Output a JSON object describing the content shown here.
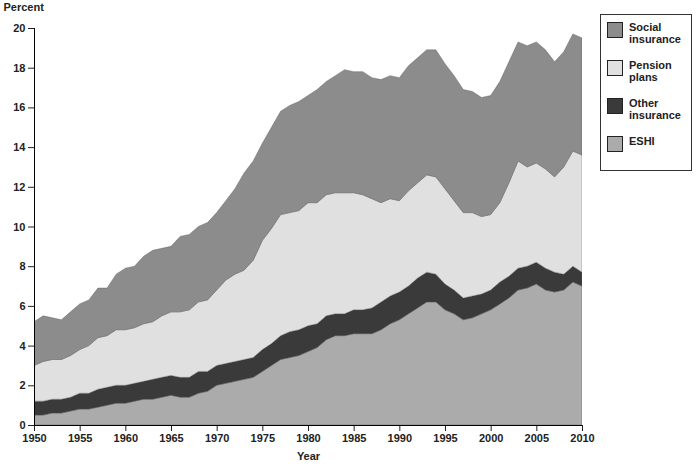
{
  "chart_data": {
    "type": "area",
    "stacked": true,
    "x_label": "Year",
    "y_label": "Percent",
    "legend": "right",
    "grid": false,
    "x": [
      1950,
      1951,
      1952,
      1953,
      1954,
      1955,
      1956,
      1957,
      1958,
      1959,
      1960,
      1961,
      1962,
      1963,
      1964,
      1965,
      1966,
      1967,
      1968,
      1969,
      1970,
      1971,
      1972,
      1973,
      1974,
      1975,
      1976,
      1977,
      1978,
      1979,
      1980,
      1981,
      1982,
      1983,
      1984,
      1985,
      1986,
      1987,
      1988,
      1989,
      1990,
      1991,
      1992,
      1993,
      1994,
      1995,
      1996,
      1997,
      1998,
      1999,
      2000,
      2001,
      2002,
      2003,
      2004,
      2005,
      2006,
      2007,
      2008,
      2009,
      2010
    ],
    "xlim": [
      1950,
      2010
    ],
    "xticks": [
      1950,
      1955,
      1960,
      1965,
      1970,
      1975,
      1980,
      1985,
      1990,
      1995,
      2000,
      2005,
      2010
    ],
    "ylim": [
      0,
      20
    ],
    "yticks": [
      0,
      2,
      4,
      6,
      8,
      10,
      12,
      14,
      16,
      18,
      20
    ],
    "series": [
      {
        "name": "Social insurance",
        "color": "#8c8c8c",
        "values": [
          2.2,
          2.3,
          2.1,
          2.0,
          2.2,
          2.3,
          2.3,
          2.5,
          2.4,
          2.8,
          3.1,
          3.1,
          3.4,
          3.6,
          3.4,
          3.3,
          3.8,
          3.8,
          3.8,
          3.9,
          3.9,
          4.0,
          4.3,
          4.9,
          5.0,
          4.9,
          5.1,
          5.2,
          5.4,
          5.5,
          5.4,
          5.7,
          5.7,
          5.9,
          6.2,
          6.1,
          6.2,
          6.1,
          6.2,
          6.2,
          6.2,
          6.3,
          6.3,
          6.3,
          6.4,
          6.3,
          6.3,
          6.2,
          6.1,
          6.0,
          6.0,
          6.1,
          6.1,
          6.0,
          6.1,
          6.1,
          6.0,
          5.8,
          5.8,
          5.9,
          5.9
        ]
      },
      {
        "name": "Pension plans",
        "color": "#e0e0e0",
        "values": [
          1.8,
          2.0,
          2.0,
          2.0,
          2.1,
          2.2,
          2.4,
          2.6,
          2.6,
          2.8,
          2.8,
          2.8,
          2.9,
          2.9,
          3.1,
          3.2,
          3.3,
          3.4,
          3.5,
          3.6,
          3.8,
          4.2,
          4.4,
          4.5,
          4.9,
          5.5,
          5.8,
          6.1,
          6.0,
          6.0,
          6.2,
          6.1,
          6.1,
          6.1,
          6.1,
          5.9,
          5.8,
          5.5,
          5.0,
          4.9,
          4.6,
          4.8,
          4.8,
          4.9,
          4.9,
          4.8,
          4.5,
          4.3,
          4.2,
          3.9,
          3.8,
          4.0,
          4.7,
          5.4,
          5.0,
          5.0,
          5.0,
          4.8,
          5.4,
          5.8,
          5.9
        ]
      },
      {
        "name": "Other insurance",
        "color": "#3a3a3a",
        "values": [
          0.7,
          0.7,
          0.7,
          0.7,
          0.7,
          0.8,
          0.8,
          0.9,
          0.9,
          0.9,
          0.9,
          0.9,
          0.9,
          1.0,
          1.0,
          1.0,
          1.0,
          1.0,
          1.1,
          1.0,
          1.0,
          1.0,
          1.0,
          1.0,
          1.0,
          1.1,
          1.1,
          1.2,
          1.3,
          1.3,
          1.3,
          1.2,
          1.2,
          1.1,
          1.1,
          1.2,
          1.2,
          1.3,
          1.4,
          1.4,
          1.4,
          1.4,
          1.5,
          1.5,
          1.4,
          1.3,
          1.2,
          1.1,
          1.1,
          1.0,
          1.0,
          1.1,
          1.1,
          1.1,
          1.1,
          1.1,
          1.1,
          1.0,
          0.8,
          0.8,
          0.7
        ]
      },
      {
        "name": "ESHI",
        "color": "#ababab",
        "values": [
          0.5,
          0.5,
          0.6,
          0.6,
          0.7,
          0.8,
          0.8,
          0.9,
          1.0,
          1.1,
          1.1,
          1.2,
          1.3,
          1.3,
          1.4,
          1.5,
          1.4,
          1.4,
          1.6,
          1.7,
          2.0,
          2.1,
          2.2,
          2.3,
          2.4,
          2.7,
          3.0,
          3.3,
          3.4,
          3.5,
          3.7,
          3.9,
          4.3,
          4.5,
          4.5,
          4.6,
          4.6,
          4.6,
          4.8,
          5.1,
          5.3,
          5.6,
          5.9,
          6.2,
          6.2,
          5.8,
          5.6,
          5.3,
          5.4,
          5.6,
          5.8,
          6.1,
          6.4,
          6.8,
          6.9,
          7.1,
          6.8,
          6.7,
          6.8,
          7.2,
          7.0
        ]
      }
    ]
  }
}
